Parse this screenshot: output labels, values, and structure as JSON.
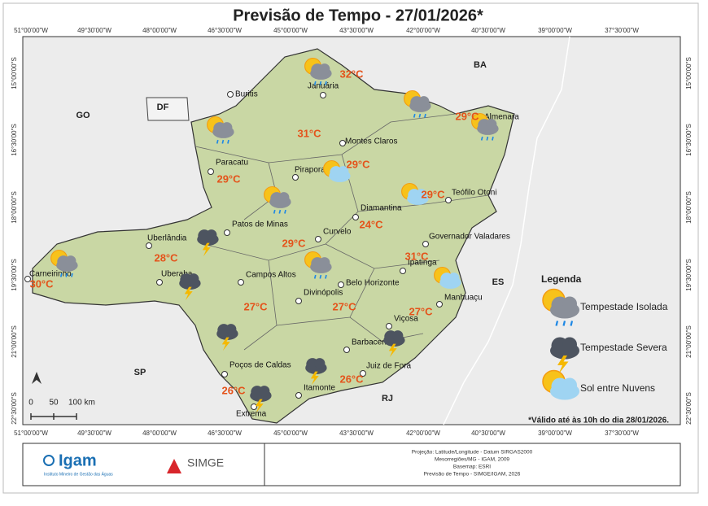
{
  "title": "Previsão de Tempo - 27/01/2026*",
  "lon_labels": [
    "51°00'00\"W",
    "49°30'00\"W",
    "48°00'00\"W",
    "46°30'00\"W",
    "45°00'00\"W",
    "43°30'00\"W",
    "42°00'00\"W",
    "40°30'00\"W",
    "39°00'00\"W",
    "37°30'00\"W"
  ],
  "lat_labels": [
    "15°00'00\"S",
    "16°30'00\"S",
    "18°00'00\"S",
    "19°30'00\"S",
    "21°00'00\"S",
    "22°30'00\"S"
  ],
  "states": [
    "GO",
    "DF",
    "BA",
    "ES",
    "SP",
    "RJ"
  ],
  "cities": [
    "Januária",
    "Buritis",
    "Montes Claros",
    "Almenara",
    "Paracatu",
    "Pirapora",
    "Teófilo Otoni",
    "Diamantina",
    "Patos de Minas",
    "Curvelo",
    "Governador Valadares",
    "Uberlândia",
    "Ipatinga",
    "Carneirinho",
    "Uberaba",
    "Campos Altos",
    "Belo Horizonte",
    "Divinópolis",
    "Manhuaçu",
    "Viçosa",
    "Barbacena",
    "Juiz de Fora",
    "Poços de Caldas",
    "Itamonte",
    "Extrema"
  ],
  "temperatures": [
    "32°C",
    "29°C",
    "31°C",
    "29°C",
    "29°C",
    "29°C",
    "24°C",
    "29°C",
    "28°C",
    "31°C",
    "30°C",
    "27°C",
    "27°C",
    "27°C",
    "26°C",
    "26°C"
  ],
  "forecast_icons": [
    "Tempestade Isolada",
    "Tempestade Isolada",
    "Tempestade Isolada",
    "Tempestade Isolada",
    "Tempestade Isolada",
    "Tempestade Isolada",
    "Tempestade Isolada",
    "Tempestade Severa",
    "Tempestade Severa",
    "Tempestade Severa",
    "Tempestade Severa",
    "Tempestade Severa",
    "Tempestade Severa",
    "Sol entre Nuvens",
    "Sol entre Nuvens",
    "Sol entre Nuvens"
  ],
  "legend": {
    "title": "Legenda",
    "items": [
      "Tempestade Isolada",
      "Tempestade Severa",
      "Sol entre Nuvens"
    ]
  },
  "scale_labels": [
    "0",
    "50",
    "100 km"
  ],
  "note": "*Válido até às 10h do dia 28/01/2026.",
  "footer": {
    "igam": "Igam",
    "igam_subtitle": "Instituto Mineiro de Gestão das Águas",
    "simge": "SIMGE",
    "credits": [
      "Projeção: Latitude/Longitude - Datum SIRGAS2000",
      "Mesorregiões/MG - IGAM, 2009",
      "Basemap: ESRI",
      "Previsão de Tempo - SIMGE/IGAM, 2026"
    ]
  }
}
